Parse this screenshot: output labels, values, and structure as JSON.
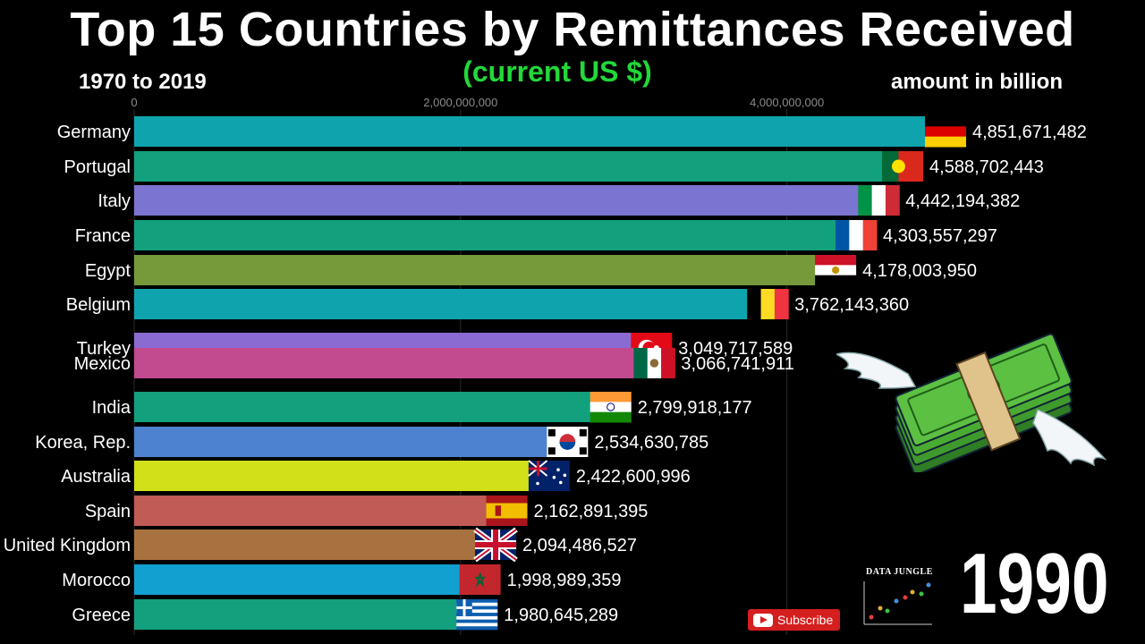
{
  "title": "Top 15 Countries by Remittances Received",
  "subtitle": "(current US $)",
  "period": "1970 to 2019",
  "unit_note": "amount in billion",
  "current_year": "1990",
  "subscribe_label": "Subscribe",
  "brand_label": "DATA JUNGLE",
  "chart_data": {
    "type": "bar",
    "orientation": "horizontal",
    "xlim": [
      0,
      4900000000
    ],
    "ticks": [
      {
        "value": 0,
        "label": "0"
      },
      {
        "value": 2000000000,
        "label": "2,000,000,000"
      },
      {
        "value": 4000000000,
        "label": "4,000,000,000"
      }
    ],
    "bars": [
      {
        "country": "Germany",
        "value": 4851671482,
        "label": "4,851,671,482",
        "color": "#0fa4ad",
        "flag": "germany-flag"
      },
      {
        "country": "Portugal",
        "value": 4588702443,
        "label": "4,588,702,443",
        "color": "#13a07d",
        "flag": "portugal-flag"
      },
      {
        "country": "Italy",
        "value": 4442194382,
        "label": "4,442,194,382",
        "color": "#7b74d0",
        "flag": "italy-flag"
      },
      {
        "country": "France",
        "value": 4303557297,
        "label": "4,303,557,297",
        "color": "#13a07d",
        "flag": "france-flag"
      },
      {
        "country": "Egypt",
        "value": 4178003950,
        "label": "4,178,003,950",
        "color": "#76993a",
        "flag": "egypt-flag"
      },
      {
        "country": "Belgium",
        "value": 3762143360,
        "label": "3,762,143,360",
        "color": "#0fa4ad",
        "flag": "belgium-flag"
      },
      {
        "country": "Turkey",
        "value": 3049717589,
        "label": "3,049,717,589",
        "color": "#8a6bd1",
        "flag": "turkey-flag"
      },
      {
        "country": "Mexico",
        "value": 3066741911,
        "label": "3,066,741,911",
        "color": "#c24a8f",
        "flag": "mexico-flag"
      },
      {
        "country": "India",
        "value": 2799918177,
        "label": "2,799,918,177",
        "color": "#13a07d",
        "flag": "india-flag"
      },
      {
        "country": "Korea, Rep.",
        "value": 2534630785,
        "label": "2,534,630,785",
        "color": "#4c82cf",
        "flag": "korea-flag"
      },
      {
        "country": "Australia",
        "value": 2422600996,
        "label": "2,422,600,996",
        "color": "#d2e01a",
        "flag": "australia-flag"
      },
      {
        "country": "Spain",
        "value": 2162891395,
        "label": "2,162,891,395",
        "color": "#c15b55",
        "flag": "spain-flag"
      },
      {
        "country": "United Kingdom",
        "value": 2094486527,
        "label": "2,094,486,527",
        "color": "#a87240",
        "flag": "uk-flag"
      },
      {
        "country": "Morocco",
        "value": 1998989359,
        "label": "1,998,989,359",
        "color": "#11a0cf",
        "flag": "morocco-flag"
      },
      {
        "country": "Greece",
        "value": 1980645289,
        "label": "1,980,645,289",
        "color": "#13a07d",
        "flag": "greece-flag"
      }
    ]
  }
}
